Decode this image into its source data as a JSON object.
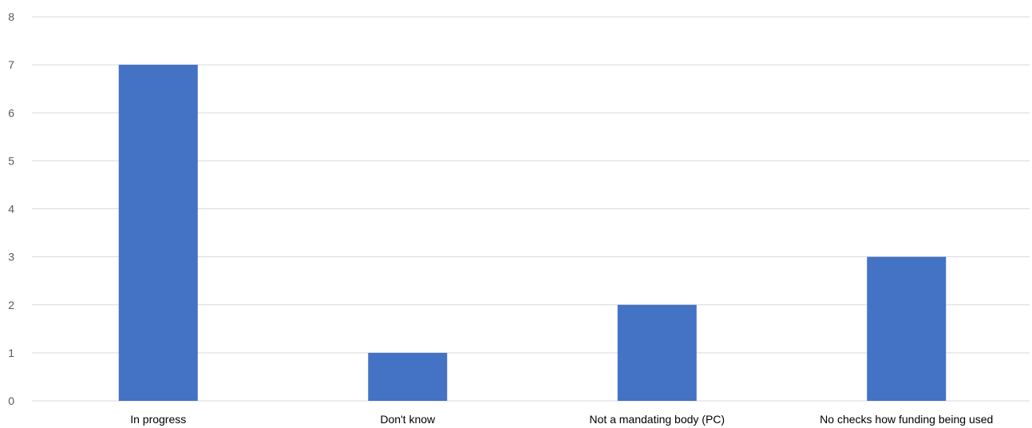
{
  "chart_data": {
    "type": "bar",
    "categories": [
      "In progress",
      "Don't know",
      "Not a mandating body (PC)",
      "No checks how funding being used"
    ],
    "values": [
      7,
      1,
      2,
      3
    ],
    "title": "",
    "xlabel": "",
    "ylabel": "",
    "ylim": [
      0,
      8
    ],
    "yticks": [
      "0",
      "1",
      "2",
      "3",
      "4",
      "5",
      "6",
      "7",
      "8"
    ],
    "grid": true,
    "legend": "none",
    "bar_color": "#4472c4",
    "grid_color": "#d9d9d9"
  }
}
